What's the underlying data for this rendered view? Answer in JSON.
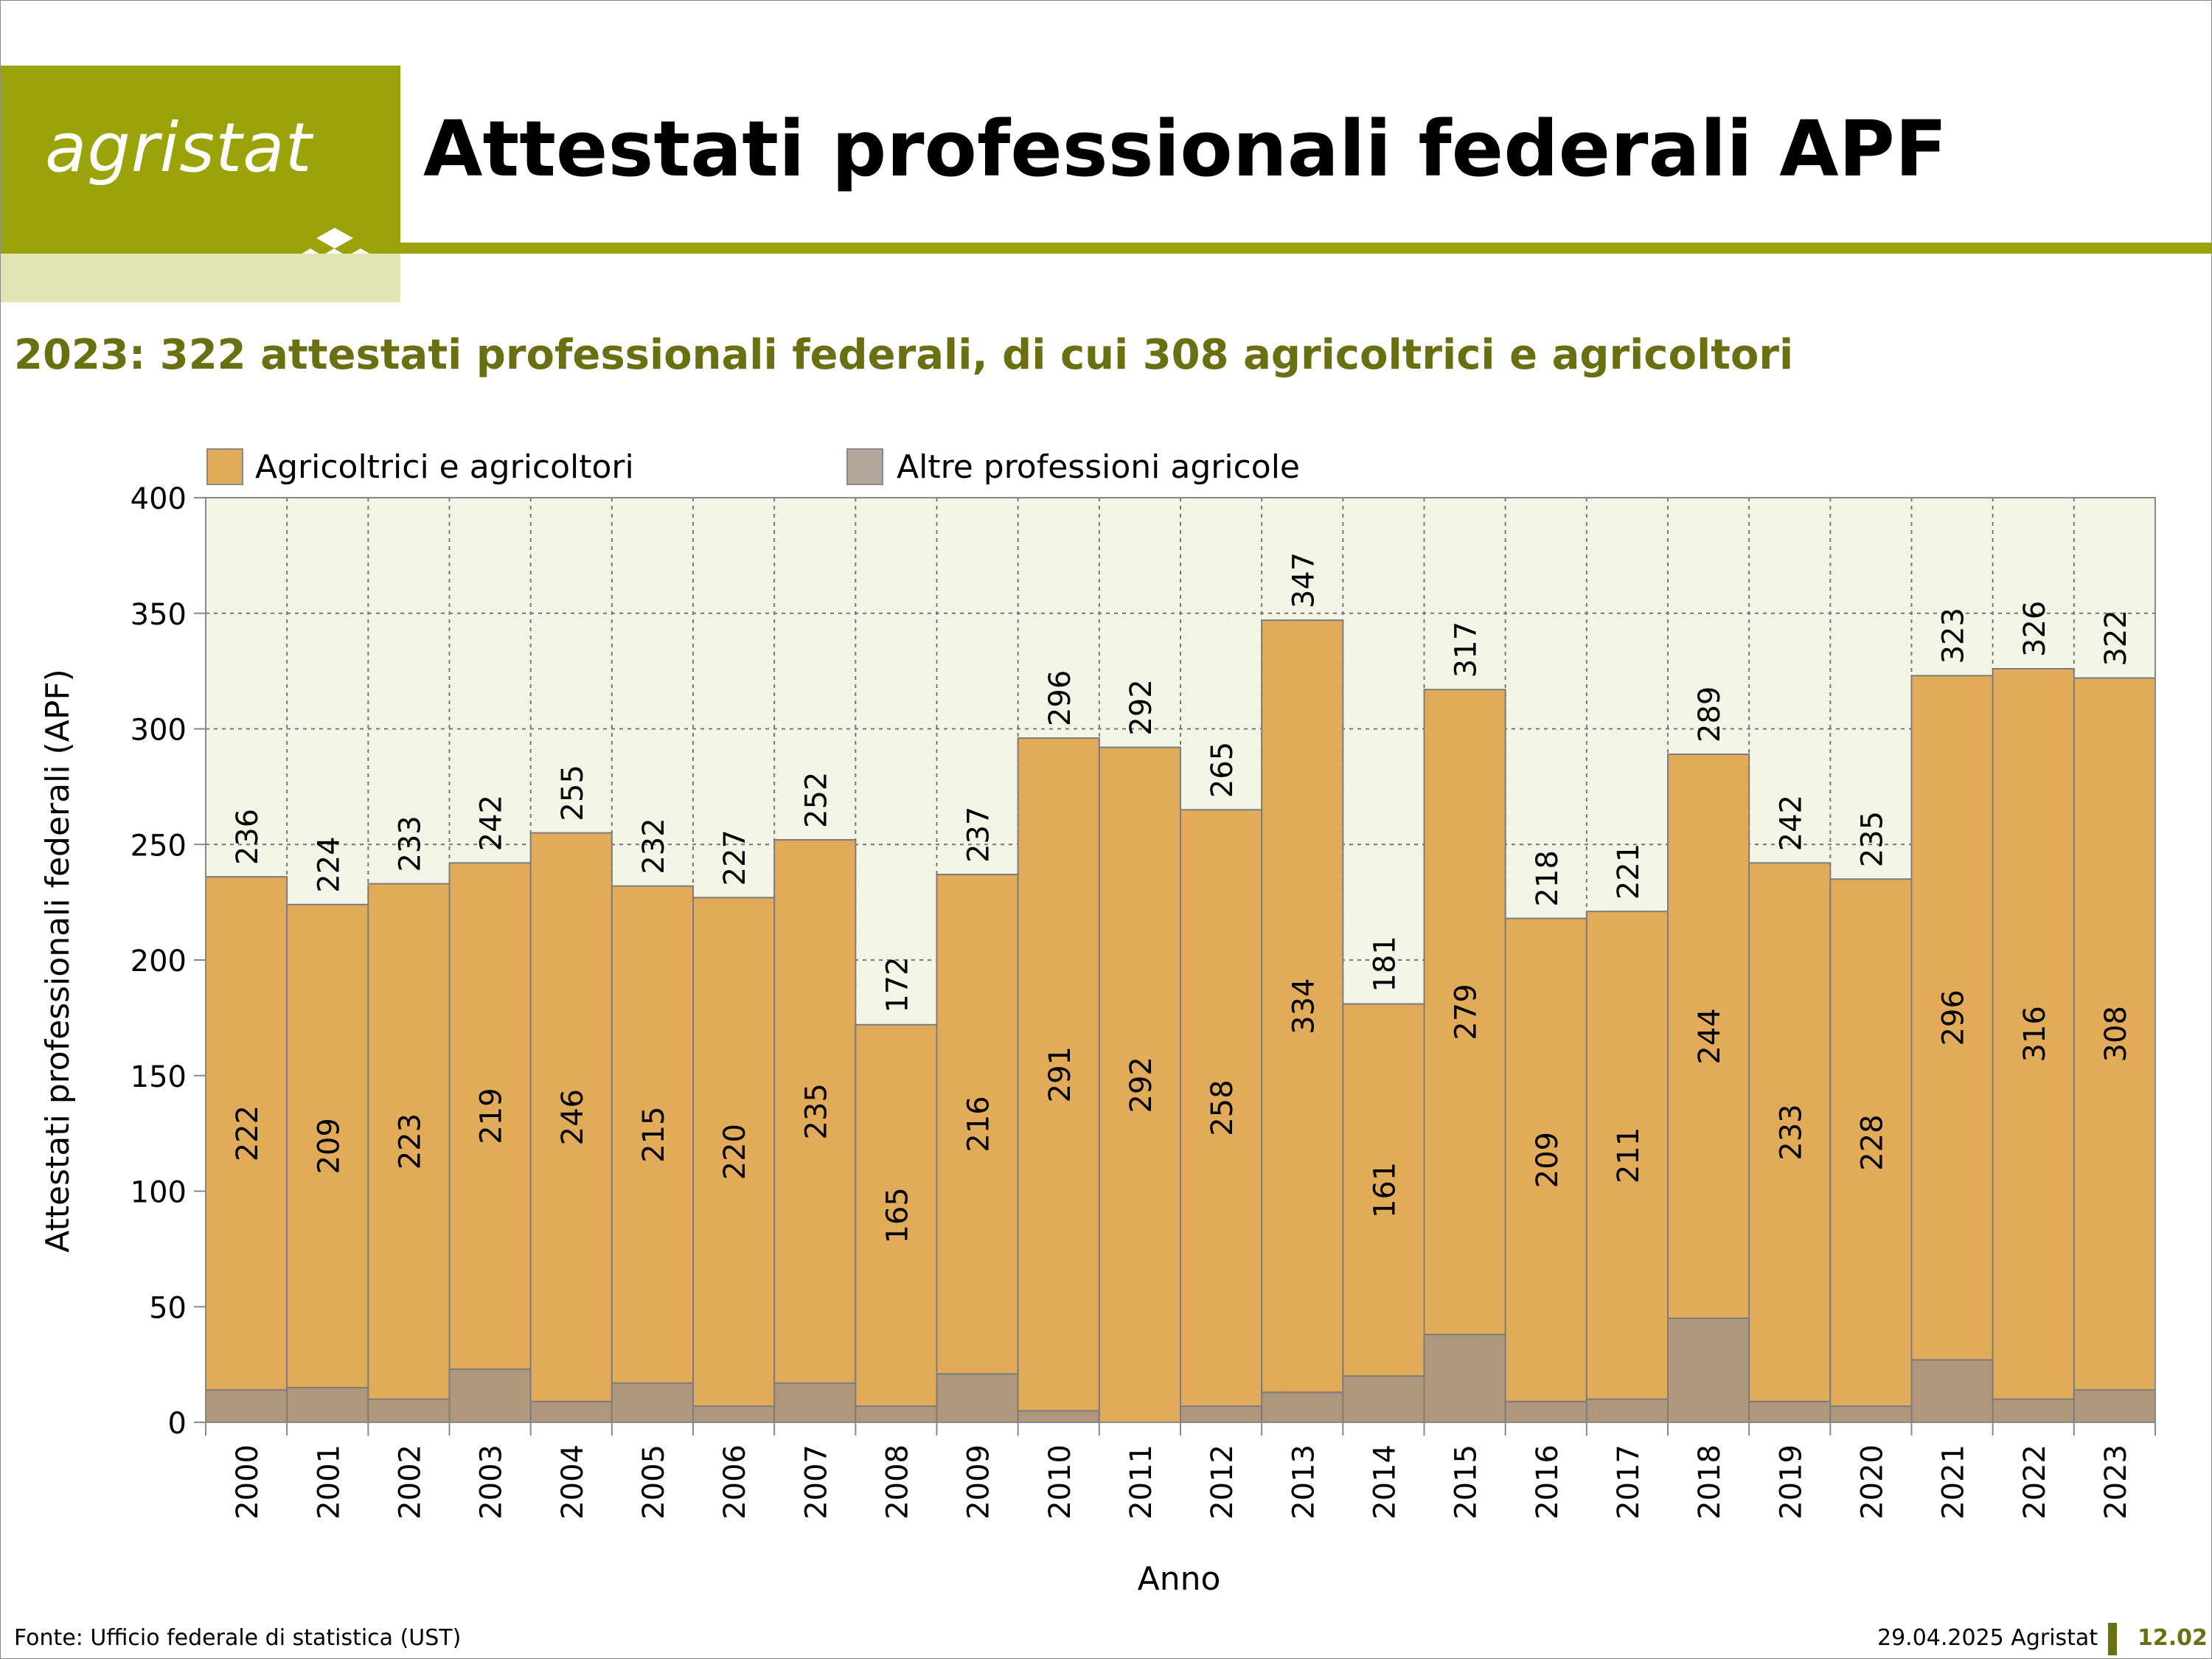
{
  "header": {
    "logo_text": "agristat",
    "title": "Attestati professionali federali APF"
  },
  "subtitle": "2023: 322 attestati professionali federali, di cui 308 agricoltrici e agricoltori",
  "footer": {
    "source": "Fonte: Ufficio federale di statistica (UST)",
    "date": "29.04.2025 Agristat",
    "page_number": "12.02"
  },
  "colors": {
    "brand": "#9aa40a",
    "brand_light": "#e1e5b4",
    "subtitle": "#6a7012",
    "plot_background": "#f3f5e6",
    "series_main": "#e1ab59",
    "series_other": "#ae977a"
  },
  "chart_data": {
    "type": "bar",
    "stacked": true,
    "xlabel": "Anno",
    "ylabel": "Attestati professionali federali (APF)",
    "ylim": [
      0,
      400
    ],
    "yticks": [
      0,
      50,
      100,
      150,
      200,
      250,
      300,
      350,
      400
    ],
    "grid": true,
    "legend_position": "top",
    "categories": [
      "2000",
      "2001",
      "2002",
      "2003",
      "2004",
      "2005",
      "2006",
      "2007",
      "2008",
      "2009",
      "2010",
      "2011",
      "2012",
      "2013",
      "2014",
      "2015",
      "2016",
      "2017",
      "2018",
      "2019",
      "2020",
      "2021",
      "2022",
      "2023"
    ],
    "totals": [
      236,
      224,
      233,
      242,
      255,
      232,
      227,
      252,
      172,
      237,
      296,
      292,
      265,
      347,
      181,
      317,
      218,
      221,
      289,
      242,
      235,
      323,
      326,
      322
    ],
    "series": [
      {
        "name": "Altre professioni agricole",
        "values": [
          14,
          15,
          10,
          23,
          9,
          17,
          7,
          17,
          7,
          21,
          5,
          0,
          7,
          13,
          20,
          38,
          9,
          10,
          45,
          9,
          7,
          27,
          10,
          14
        ]
      },
      {
        "name": "Agricoltrici e agricoltori",
        "values": [
          222,
          209,
          223,
          219,
          246,
          215,
          220,
          235,
          165,
          216,
          291,
          292,
          258,
          334,
          161,
          279,
          209,
          211,
          244,
          233,
          228,
          296,
          316,
          308
        ]
      }
    ]
  }
}
